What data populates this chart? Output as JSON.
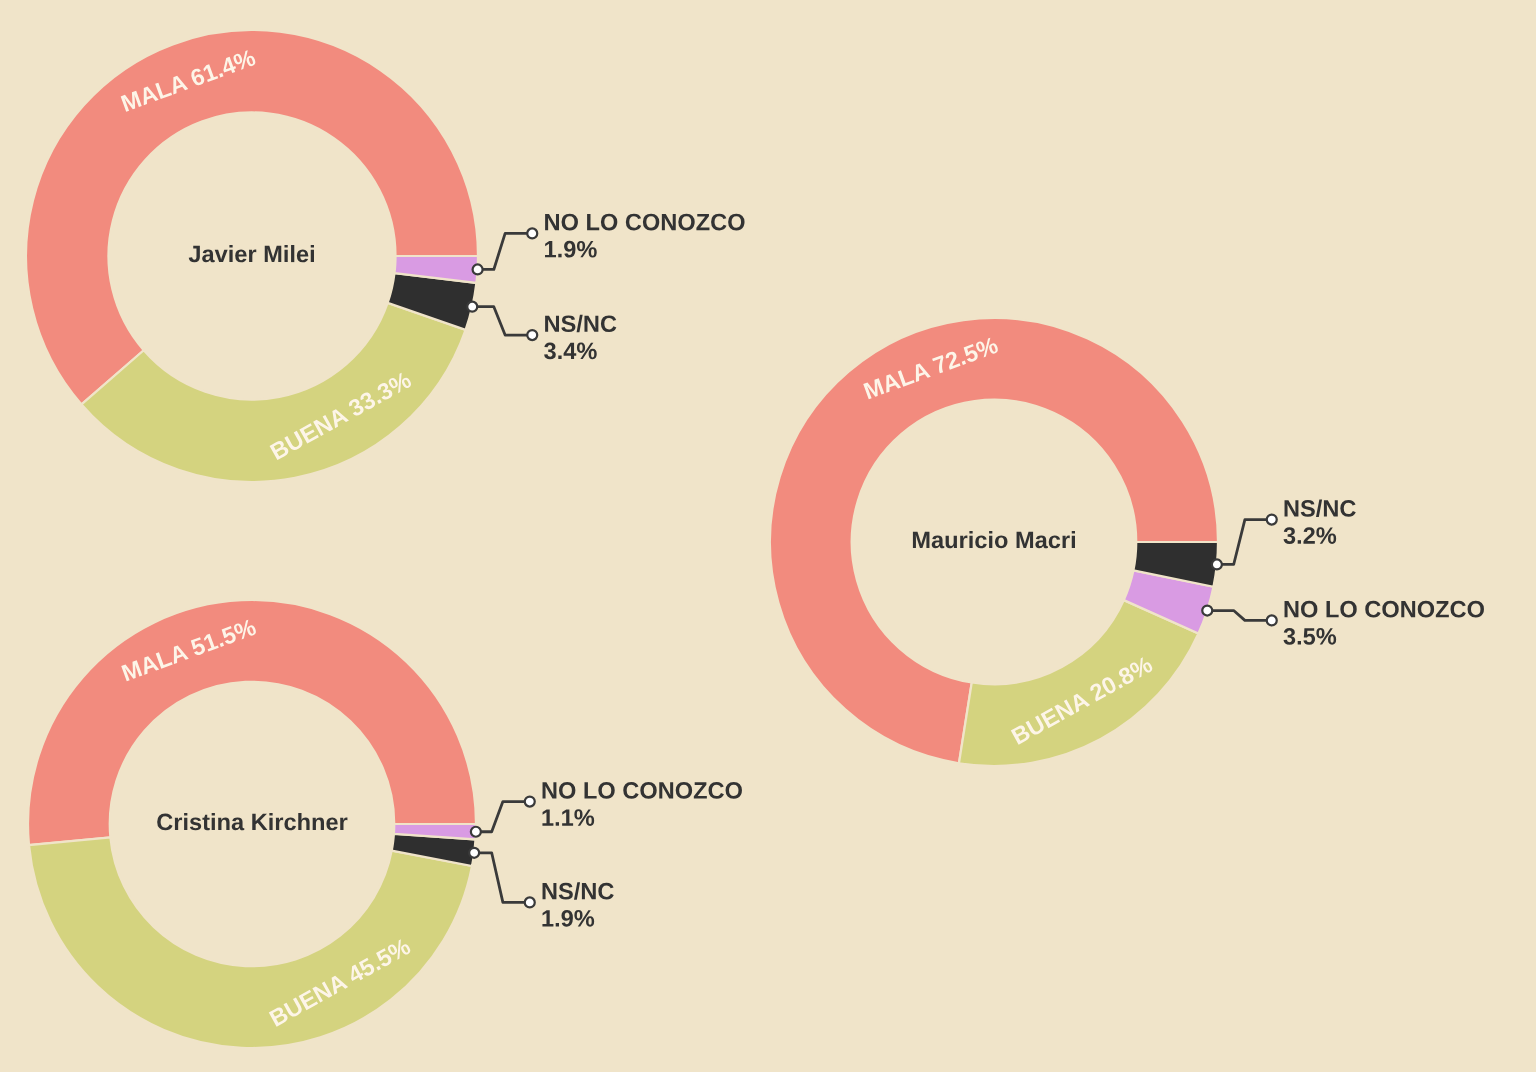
{
  "chart_data": [
    {
      "type": "donut",
      "title": "Javier Milei",
      "categories": [
        "MALA",
        "BUENA",
        "NS/NC",
        "NO LO CONOZCO"
      ],
      "values": [
        61.4,
        33.3,
        3.4,
        1.9
      ],
      "value_labels": [
        "61.4%",
        "33.3%",
        "3.4%",
        "1.9%"
      ],
      "colors": [
        "#f28b7e",
        "#d4d37f",
        "#2f2f2f",
        "#d99be3"
      ]
    },
    {
      "type": "donut",
      "title": "Mauricio Macri",
      "categories": [
        "MALA",
        "BUENA",
        "NO LO CONOZCO",
        "NS/NC"
      ],
      "values": [
        72.5,
        20.8,
        3.5,
        3.2
      ],
      "value_labels": [
        "72.5%",
        "20.8%",
        "3.5%",
        "3.2%"
      ],
      "colors": [
        "#f28b7e",
        "#d4d37f",
        "#d99be3",
        "#2f2f2f"
      ]
    },
    {
      "type": "donut",
      "title": "Cristina Kirchner",
      "categories": [
        "MALA",
        "BUENA",
        "NS/NC",
        "NO LO CONOZCO"
      ],
      "values": [
        51.5,
        45.5,
        1.9,
        1.1
      ],
      "value_labels": [
        "51.5%",
        "45.5%",
        "1.9%",
        "1.1%"
      ],
      "colors": [
        "#f28b7e",
        "#d4d37f",
        "#2f2f2f",
        "#d99be3"
      ]
    }
  ]
}
